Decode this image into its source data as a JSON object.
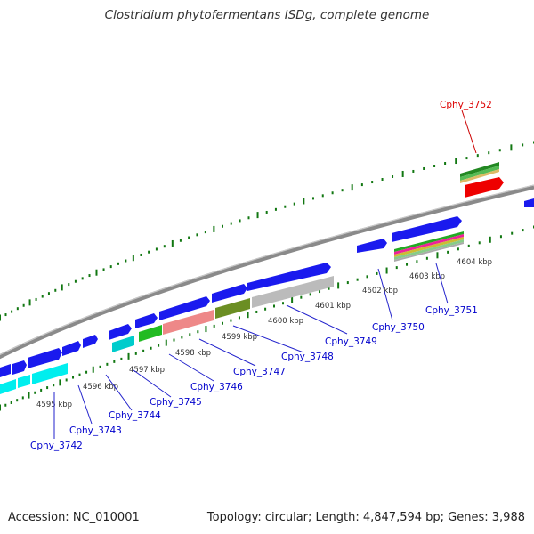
{
  "title": "Clostridium phytofermentans ISDg, complete genome",
  "footer": {
    "accession": "Accession: NC_010001",
    "summary": "Topology: circular; Length: 4,847,594 bp; Genes: 3,988"
  },
  "colors": {
    "gene_label": "#0000cc",
    "highlight_label": "#dd0000",
    "backbone": "#888888",
    "tick": "#117711"
  },
  "kbp_labels": [
    "4595 kbp",
    "4596 kbp",
    "4597 kbp",
    "4598 kbp",
    "4599 kbp",
    "4600 kbp",
    "4601 kbp",
    "4602 kbp",
    "4603 kbp",
    "4604 kbp"
  ],
  "gene_labels": [
    "Cphy_3742",
    "Cphy_3743",
    "Cphy_3744",
    "Cphy_3745",
    "Cphy_3746",
    "Cphy_3747",
    "Cphy_3748",
    "Cphy_3749",
    "Cphy_3750",
    "Cphy_3751"
  ],
  "highlight_gene": "Cphy_3752"
}
